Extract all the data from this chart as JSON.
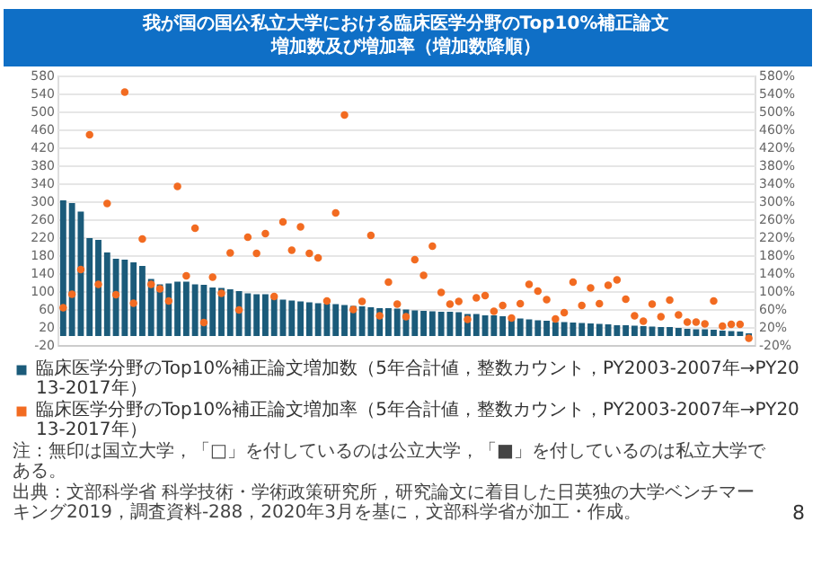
{
  "chart_data": {
    "type": "bar",
    "title": "我が国の国公私立大学における臨床医学分野のTop10%補正論文増加数及び増加率（増加数降順）",
    "categories": [
      null,
      null,
      null,
      null,
      null,
      null,
      null,
      null,
      null,
      null,
      null,
      null,
      null,
      null,
      null,
      null,
      null,
      null,
      null,
      null,
      null,
      null,
      null,
      null,
      null,
      null,
      null,
      null,
      null,
      null,
      null,
      null,
      null,
      null,
      null,
      null,
      null,
      null,
      null,
      null,
      null,
      null,
      null,
      null,
      null,
      null,
      null,
      null,
      null,
      null,
      null,
      null,
      null,
      null,
      null,
      null,
      null,
      null,
      null,
      null,
      null,
      null,
      null,
      null,
      null,
      null,
      null,
      null,
      null,
      null,
      null,
      null,
      null,
      null,
      null,
      null,
      null,
      null,
      null
    ],
    "series": [
      {
        "name": "臨床医学分野のTop10%補正論文増加数（5年合計値，整数カウント，PY2003-2007年→PY2013-2017年）",
        "color": "#1b5b7a",
        "values": [
          302,
          296,
          277,
          218,
          214,
          186,
          172,
          170,
          164,
          156,
          127,
          115,
          117,
          121,
          121,
          115,
          114,
          108,
          107,
          104,
          100,
          95,
          93,
          93,
          86,
          81,
          79,
          77,
          75,
          73,
          72,
          71,
          69,
          67,
          66,
          64,
          62,
          62,
          61,
          59,
          57,
          56,
          55,
          54,
          54,
          53,
          49,
          49,
          46,
          46,
          44,
          44,
          39,
          37,
          35,
          34,
          31,
          31,
          30,
          29,
          28,
          27,
          26,
          24,
          24,
          23,
          22,
          21,
          20,
          20,
          18,
          16,
          15,
          15,
          14,
          12,
          11,
          10,
          6
        ]
      },
      {
        "name": "臨床医学分野のTop10%補正論文増加率（5年合計値，整数カウント，PY2003-2007年→PY2013-2017年）",
        "type": "scatter",
        "axis": "y2",
        "color": "#f26b21",
        "values": [
          63,
          93,
          148,
          448,
          115,
          295,
          92,
          543,
          73,
          216,
          115,
          105,
          78,
          333,
          134,
          240,
          30,
          131,
          95,
          185,
          58,
          220,
          184,
          228,
          88,
          254,
          191,
          243,
          184,
          174,
          78,
          274,
          492,
          59,
          77,
          224,
          45,
          120,
          71,
          43,
          170,
          135,
          200,
          97,
          71,
          77,
          37,
          85,
          90,
          55,
          68,
          40,
          72,
          115,
          100,
          81,
          38,
          52,
          120,
          68,
          107,
          72,
          113,
          125,
          82,
          45,
          33,
          71,
          43,
          80,
          47,
          31,
          31,
          27,
          78,
          22,
          26,
          26,
          -5
        ]
      }
    ],
    "ylim": [
      -20,
      580
    ],
    "yticks": [
      -20,
      20,
      60,
      100,
      140,
      180,
      220,
      260,
      300,
      340,
      380,
      420,
      460,
      500,
      540,
      580
    ],
    "y2lim": [
      -20,
      580
    ],
    "y2ticks": [
      {
        "value": -20,
        "label": "-20%"
      },
      {
        "value": 20,
        "label": "20%"
      },
      {
        "value": 60,
        "label": "60%"
      },
      {
        "value": 100,
        "label": "100%"
      },
      {
        "value": 140,
        "label": "140%"
      },
      {
        "value": 180,
        "label": "180%"
      },
      {
        "value": 220,
        "label": "220%"
      },
      {
        "value": 260,
        "label": "260%"
      },
      {
        "value": 300,
        "label": "300%"
      },
      {
        "value": 340,
        "label": "340%"
      },
      {
        "value": 380,
        "label": "380%"
      },
      {
        "value": 420,
        "label": "420%"
      },
      {
        "value": 460,
        "label": "460%"
      },
      {
        "value": 500,
        "label": "500%"
      },
      {
        "value": 540,
        "label": "540%"
      },
      {
        "value": 580,
        "label": "580%"
      }
    ],
    "grid": "y",
    "legend": "bottom",
    "marker": "circle",
    "annotations": [
      "注：無印は国立大学，「□」を付しているのは公立大学，「■」を付しているのは私立大学である。",
      "出典：文部科学省 科学技術・学術政策研究所，研究論文に着目した日英独の大学ベンチマーキング2019，調査資料-288，2020年3月を基に，文部科学省が加工・作成。",
      "8"
    ]
  }
}
